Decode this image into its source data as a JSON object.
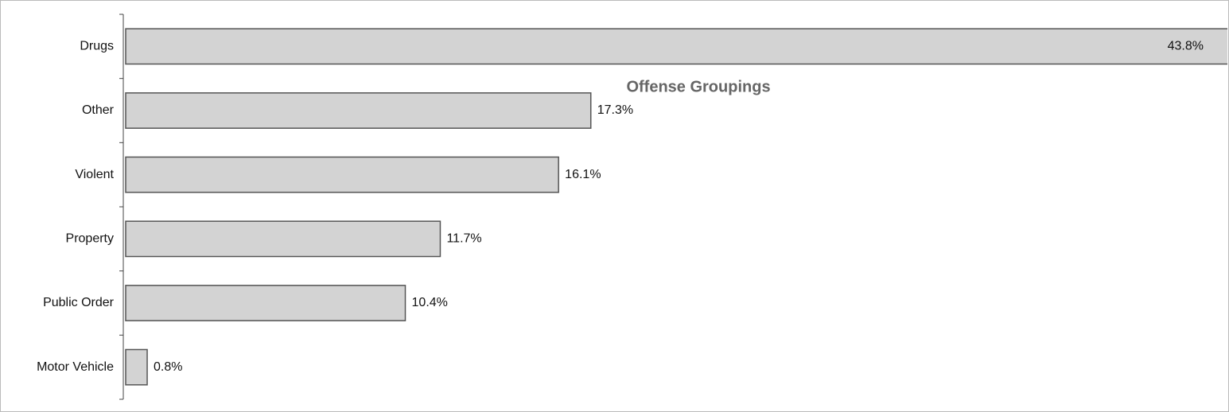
{
  "chart_data": {
    "type": "bar",
    "orientation": "horizontal",
    "title": "Offense Groupings",
    "categories": [
      "Drugs",
      "Other",
      "Violent",
      "Property",
      "Public Order",
      "Motor Vehicle"
    ],
    "values": [
      43.8,
      17.3,
      16.1,
      11.7,
      10.4,
      0.8
    ],
    "value_labels": [
      "43.8%",
      "17.3%",
      "16.1%",
      "11.7%",
      "10.4%",
      "0.8%"
    ],
    "color": "#d3d3d3",
    "xlim": [
      0,
      40
    ]
  }
}
